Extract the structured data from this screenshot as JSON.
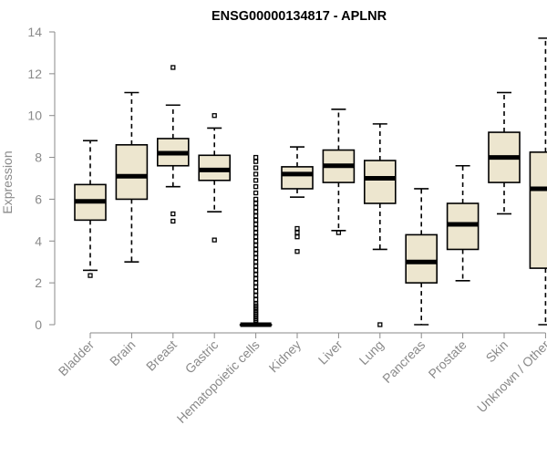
{
  "chart_data": {
    "type": "boxplot",
    "title": "ENSG00000134817 - APLNR",
    "xlabel": "",
    "ylabel": "Expression",
    "ylim": [
      0,
      14
    ],
    "yticks": [
      0,
      2,
      4,
      6,
      8,
      10,
      12,
      14
    ],
    "grid": false,
    "box_color": "#ede6cf",
    "categories": [
      "Bladder",
      "Brain",
      "Breast",
      "Gastric",
      "Hematopoietic cells",
      "Kidney",
      "Liver",
      "Lung",
      "Pancreas",
      "Prostate",
      "Skin",
      "Unknown / Other"
    ],
    "series": [
      {
        "name": "Bladder",
        "whisker_low": 2.6,
        "q1": 5.0,
        "median": 5.9,
        "q3": 6.7,
        "whisker_high": 8.8,
        "outliers": [
          2.35
        ]
      },
      {
        "name": "Brain",
        "whisker_low": 3.0,
        "q1": 6.0,
        "median": 7.1,
        "q3": 8.6,
        "whisker_high": 11.1,
        "outliers": []
      },
      {
        "name": "Breast",
        "whisker_low": 6.6,
        "q1": 7.6,
        "median": 8.2,
        "q3": 8.9,
        "whisker_high": 10.5,
        "outliers": [
          12.3,
          5.3,
          4.95
        ]
      },
      {
        "name": "Gastric",
        "whisker_low": 5.4,
        "q1": 6.9,
        "median": 7.4,
        "q3": 8.1,
        "whisker_high": 9.4,
        "outliers": [
          10.0,
          4.05
        ]
      },
      {
        "name": "Hematopoietic cells",
        "whisker_low": 0.0,
        "q1": 0.0,
        "median": 0.0,
        "q3": 0.0,
        "whisker_high": 0.0,
        "outliers": [
          8.0,
          7.8,
          7.5,
          7.2,
          6.9,
          6.6,
          6.3,
          6.0,
          5.8,
          5.6,
          5.4,
          5.2,
          5.0,
          4.8,
          4.6,
          4.4,
          4.2,
          4.0,
          3.8,
          3.6,
          3.4,
          3.2,
          3.0,
          2.8,
          2.6,
          2.4,
          2.2,
          2.0,
          1.8,
          1.6,
          1.4,
          1.2,
          1.0,
          0.9,
          0.8,
          0.7,
          0.6,
          0.5,
          0.4,
          0.3,
          0.2,
          0.1
        ]
      },
      {
        "name": "Kidney",
        "whisker_low": 6.1,
        "q1": 6.5,
        "median": 7.2,
        "q3": 7.55,
        "whisker_high": 8.5,
        "outliers": [
          4.6,
          4.4,
          4.2,
          3.5
        ]
      },
      {
        "name": "Liver",
        "whisker_low": 4.5,
        "q1": 6.8,
        "median": 7.6,
        "q3": 8.35,
        "whisker_high": 10.3,
        "outliers": [
          4.4
        ]
      },
      {
        "name": "Lung",
        "whisker_low": 3.6,
        "q1": 5.8,
        "median": 7.0,
        "q3": 7.85,
        "whisker_high": 9.6,
        "outliers": [
          0.0
        ]
      },
      {
        "name": "Pancreas",
        "whisker_low": 0.0,
        "q1": 2.0,
        "median": 3.0,
        "q3": 4.3,
        "whisker_high": 6.5,
        "outliers": []
      },
      {
        "name": "Prostate",
        "whisker_low": 2.1,
        "q1": 3.6,
        "median": 4.8,
        "q3": 5.8,
        "whisker_high": 7.6,
        "outliers": []
      },
      {
        "name": "Skin",
        "whisker_low": 5.3,
        "q1": 6.8,
        "median": 8.0,
        "q3": 9.2,
        "whisker_high": 11.1,
        "outliers": []
      },
      {
        "name": "Unknown / Other",
        "whisker_low": 0.0,
        "q1": 2.7,
        "median": 6.5,
        "q3": 8.25,
        "whisker_high": 13.7,
        "outliers": []
      }
    ]
  }
}
